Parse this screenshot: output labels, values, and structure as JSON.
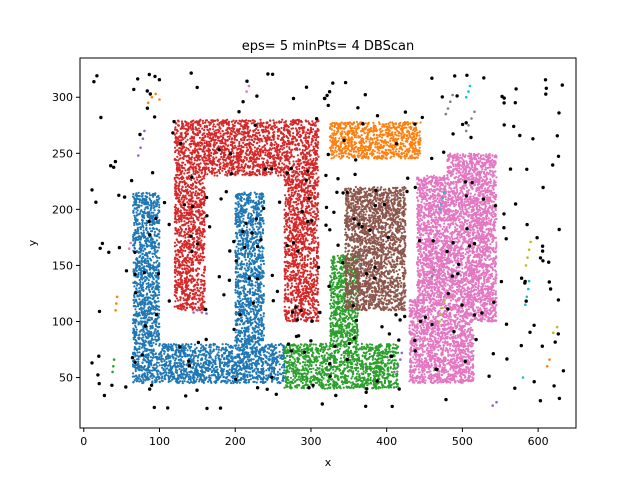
{
  "chart_data": {
    "type": "scatter",
    "title": "eps= 5 minPts= 4 DBScan",
    "xlabel": "x",
    "ylabel": "y",
    "xlim": [
      -5,
      650
    ],
    "ylim": [
      5,
      335
    ],
    "xticks": [
      0,
      100,
      200,
      300,
      400,
      500,
      600
    ],
    "yticks": [
      50,
      100,
      150,
      200,
      250,
      300
    ],
    "grid": false,
    "legend": "none",
    "seed": 7,
    "clusters": [
      {
        "color": "#1f77b4",
        "density": 0.22,
        "rects": [
          [
            65,
            45,
            265,
            80
          ],
          [
            65,
            80,
            100,
            215
          ],
          [
            200,
            80,
            238,
            215
          ]
        ]
      },
      {
        "color": "#d62728",
        "density": 0.2,
        "rects": [
          [
            120,
            230,
            310,
            280
          ],
          [
            120,
            110,
            160,
            230
          ],
          [
            265,
            100,
            310,
            230
          ]
        ]
      },
      {
        "color": "#2ca02c",
        "density": 0.22,
        "rects": [
          [
            265,
            40,
            415,
            80
          ],
          [
            325,
            80,
            362,
            160
          ]
        ]
      },
      {
        "color": "#ff7f0e",
        "density": 0.22,
        "rects": [
          [
            325,
            245,
            445,
            278
          ]
        ]
      },
      {
        "color": "#8c564b",
        "density": 0.24,
        "rects": [
          [
            345,
            110,
            425,
            220
          ]
        ]
      },
      {
        "color": "#e377c2",
        "density": 0.26,
        "rects": [
          [
            430,
            45,
            515,
            120
          ],
          [
            440,
            120,
            515,
            230
          ],
          [
            480,
            230,
            545,
            250
          ],
          [
            515,
            100,
            545,
            230
          ]
        ]
      }
    ],
    "small_clusters": [
      {
        "color": "#9467bd",
        "points": [
          [
            75,
            255
          ],
          [
            78,
            263
          ],
          [
            80,
            270
          ],
          [
            72,
            248
          ],
          [
            145,
            108
          ],
          [
            150,
            110
          ],
          [
            156,
            108
          ],
          [
            162,
            107
          ],
          [
            410,
            55
          ],
          [
            415,
            60
          ],
          [
            418,
            66
          ],
          [
            420,
            72
          ],
          [
            540,
            25
          ],
          [
            545,
            28
          ]
        ]
      },
      {
        "color": "#bcbd22",
        "points": [
          [
            470,
            100
          ],
          [
            472,
            106
          ],
          [
            474,
            112
          ],
          [
            476,
            118
          ],
          [
            584,
            150
          ],
          [
            586,
            157
          ],
          [
            588,
            164
          ],
          [
            590,
            171
          ],
          [
            620,
            90
          ],
          [
            625,
            95
          ]
        ]
      },
      {
        "color": "#17becf",
        "points": [
          [
            470,
            200
          ],
          [
            472,
            205
          ],
          [
            474,
            210
          ],
          [
            476,
            215
          ],
          [
            583,
            115
          ],
          [
            585,
            122
          ],
          [
            587,
            129
          ],
          [
            588,
            136
          ],
          [
            505,
            300
          ],
          [
            508,
            305
          ],
          [
            510,
            310
          ],
          [
            580,
            50
          ]
        ]
      },
      {
        "color": "#7f7f7f",
        "points": [
          [
            478,
            285
          ],
          [
            481,
            290
          ],
          [
            484,
            296
          ],
          [
            487,
            302
          ],
          [
            505,
            270
          ],
          [
            508,
            275
          ],
          [
            512,
            281
          ],
          [
            516,
            287
          ],
          [
            460,
            140
          ],
          [
            462,
            146
          ],
          [
            364,
            150
          ],
          [
            366,
            157
          ],
          [
            368,
            163
          ]
        ]
      },
      {
        "color": "#ff7f0e",
        "points": [
          [
            85,
            295
          ],
          [
            90,
            300
          ],
          [
            95,
            303
          ],
          [
            100,
            298
          ],
          [
            42,
            110
          ],
          [
            43,
            116
          ],
          [
            44,
            122
          ],
          [
            612,
            60
          ],
          [
            615,
            66
          ]
        ]
      },
      {
        "color": "#e377c2",
        "points": [
          [
            215,
            305
          ],
          [
            218,
            310
          ],
          [
            60,
            165
          ],
          [
            62,
            170
          ]
        ]
      },
      {
        "color": "#2ca02c",
        "points": [
          [
            38,
            55
          ],
          [
            39,
            60
          ],
          [
            40,
            66
          ]
        ]
      }
    ],
    "noise": {
      "color": "#000000",
      "count": 320
    }
  }
}
